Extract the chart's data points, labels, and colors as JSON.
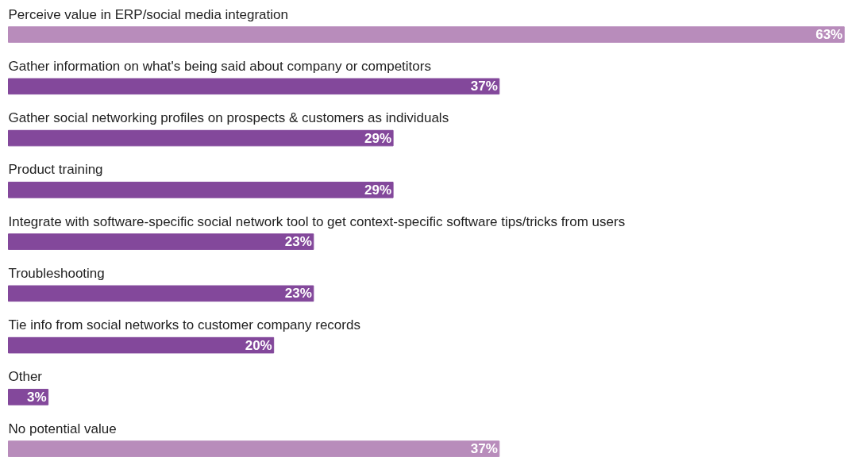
{
  "chart_data": {
    "type": "bar",
    "orientation": "horizontal",
    "categories": [
      "Perceive value in ERP/social media integration",
      "Gather information on what's being said about company or competitors",
      "Gather social networking profiles on prospects & customers as individuals",
      "Product training",
      "Integrate with software-specific social network tool to get context-specific software tips/tricks from users",
      "Troubleshooting",
      "Tie info from social networks to customer company records",
      "Other",
      "No potential value"
    ],
    "values": [
      63,
      37,
      29,
      29,
      23,
      23,
      20,
      3,
      37
    ],
    "value_labels": [
      "63%",
      "37%",
      "29%",
      "29%",
      "23%",
      "23%",
      "20%",
      "3%",
      "37%"
    ],
    "colors": [
      "#b88cbb",
      "#83489b",
      "#83489b",
      "#83489b",
      "#83489b",
      "#83489b",
      "#83489b",
      "#83489b",
      "#b88cbb"
    ],
    "grid": false
  }
}
